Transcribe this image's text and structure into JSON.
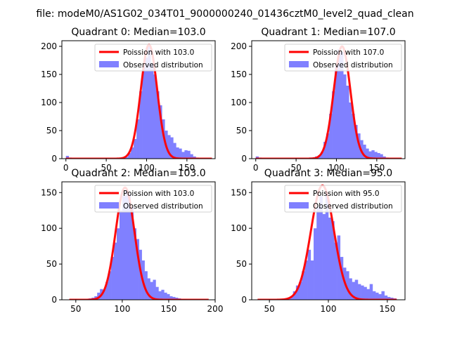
{
  "figure": {
    "suptitle": "file: modeM0/AS1G02_034T01_9000000240_01436cztM0_level2_quad_clean"
  },
  "colors": {
    "histogram": "#8080ff",
    "poisson_curve": "#ff0000",
    "axes": "#000000",
    "background": "#ffffff"
  },
  "chart_data": [
    {
      "type": "bar",
      "title": "Quadrant 0: Median=103.0",
      "xlim": [
        -5,
        185
      ],
      "ylim": [
        0,
        210
      ],
      "xticks": [
        0,
        50,
        100,
        150
      ],
      "yticks": [
        0,
        50,
        100,
        150,
        200
      ],
      "grid": false,
      "legend_position": "top-right",
      "series": [
        {
          "name": "Poission with 103.0",
          "kind": "line",
          "mean": 103.0,
          "peak": 203,
          "sigma": 10.149,
          "x_range": [
            0,
            181
          ]
        },
        {
          "name": "Observed distribution",
          "kind": "histogram",
          "bin_width": 3.5,
          "x": [
            0,
            3.5,
            7,
            10.5,
            14,
            17.5,
            21,
            24.5,
            28,
            31.5,
            35,
            38.5,
            42,
            45.5,
            49,
            52.5,
            56,
            59.5,
            63,
            66.5,
            70,
            73.5,
            77,
            80.5,
            84,
            87.5,
            91,
            94.5,
            98,
            101.5,
            105,
            108.5,
            112,
            115.5,
            119,
            122.5,
            126,
            129.5,
            133,
            136.5,
            140,
            143.5,
            147,
            150.5,
            154,
            157.5,
            161,
            164.5,
            168,
            171.5,
            175,
            178.5
          ],
          "values": [
            5,
            2,
            0,
            0,
            0,
            0,
            0,
            0,
            0,
            0,
            0,
            0,
            0,
            0,
            0,
            0,
            0,
            1,
            0,
            0,
            2,
            3,
            10,
            20,
            35,
            70,
            120,
            165,
            180,
            200,
            170,
            150,
            120,
            95,
            70,
            50,
            42,
            38,
            28,
            20,
            18,
            12,
            15,
            14,
            8,
            4,
            2,
            0,
            0,
            0,
            0,
            0
          ]
        }
      ]
    },
    {
      "type": "bar",
      "title": "Quadrant 1: Median=107.0",
      "xlim": [
        -5,
        185
      ],
      "ylim": [
        0,
        210
      ],
      "xticks": [
        0,
        50,
        100,
        150
      ],
      "yticks": [
        0,
        50,
        100,
        150,
        200
      ],
      "grid": false,
      "legend_position": "top-right",
      "series": [
        {
          "name": "Poission with 107.0",
          "kind": "line",
          "mean": 107.0,
          "peak": 200,
          "sigma": 10.344,
          "x_range": [
            0,
            181
          ]
        },
        {
          "name": "Observed distribution",
          "kind": "histogram",
          "bin_width": 3.5,
          "x": [
            0,
            3.5,
            7,
            10.5,
            14,
            17.5,
            21,
            24.5,
            28,
            31.5,
            35,
            38.5,
            42,
            45.5,
            49,
            52.5,
            56,
            59.5,
            63,
            66.5,
            70,
            73.5,
            77,
            80.5,
            84,
            87.5,
            91,
            94.5,
            98,
            101.5,
            105,
            108.5,
            112,
            115.5,
            119,
            122.5,
            126,
            129.5,
            133,
            136.5,
            140,
            143.5,
            147,
            150.5,
            154,
            157.5,
            161,
            164.5,
            168,
            171.5,
            175,
            178.5
          ],
          "values": [
            4,
            2,
            0,
            0,
            0,
            0,
            0,
            0,
            0,
            0,
            0,
            0,
            0,
            0,
            0,
            0,
            1,
            0,
            0,
            2,
            2,
            4,
            6,
            12,
            30,
            45,
            80,
            120,
            165,
            195,
            190,
            150,
            130,
            100,
            80,
            60,
            45,
            33,
            25,
            18,
            13,
            15,
            12,
            10,
            8,
            4,
            2,
            0,
            0,
            0,
            0,
            0
          ]
        }
      ]
    },
    {
      "type": "bar",
      "title": "Quadrant 2: Median=103.0",
      "xlim": [
        35,
        200
      ],
      "ylim": [
        0,
        165
      ],
      "xticks": [
        50,
        100,
        150,
        200
      ],
      "yticks": [
        0,
        50,
        100,
        150
      ],
      "grid": false,
      "legend_position": "top-right",
      "series": [
        {
          "name": "Poission with 103.0",
          "kind": "line",
          "mean": 103.0,
          "peak": 157,
          "sigma": 10.149,
          "x_range": [
            43,
            193
          ]
        },
        {
          "name": "Observed distribution",
          "kind": "histogram",
          "bin_width": 3.0,
          "x": [
            43,
            46,
            49,
            52,
            55,
            58,
            61,
            64,
            67,
            70,
            73,
            76,
            79,
            82,
            85,
            88,
            91,
            94,
            97,
            100,
            103,
            106,
            109,
            112,
            115,
            118,
            121,
            124,
            127,
            130,
            133,
            136,
            139,
            142,
            145,
            148,
            151,
            154,
            157,
            160,
            163,
            166,
            169,
            172,
            175,
            178,
            181,
            184,
            187,
            190
          ],
          "values": [
            1,
            0,
            0,
            0,
            0,
            0,
            1,
            2,
            3,
            5,
            10,
            15,
            14,
            25,
            40,
            60,
            80,
            100,
            125,
            145,
            152,
            148,
            130,
            100,
            85,
            70,
            55,
            40,
            30,
            25,
            28,
            18,
            12,
            14,
            10,
            8,
            5,
            4,
            3,
            2,
            1,
            1,
            0,
            0,
            0,
            0,
            0,
            0,
            0,
            0
          ]
        }
      ]
    },
    {
      "type": "bar",
      "title": "Quadrant 3: Median=95.0",
      "xlim": [
        35,
        165
      ],
      "ylim": [
        0,
        165
      ],
      "xticks": [
        50,
        100,
        150
      ],
      "yticks": [
        0,
        50,
        100,
        150
      ],
      "grid": false,
      "legend_position": "top-right",
      "series": [
        {
          "name": "Poission with 95.0",
          "kind": "line",
          "mean": 95.0,
          "peak": 160,
          "sigma": 9.747,
          "x_range": [
            40,
            158
          ]
        },
        {
          "name": "Observed distribution",
          "kind": "histogram",
          "bin_width": 2.5,
          "x": [
            40,
            42.5,
            45,
            47.5,
            50,
            52.5,
            55,
            57.5,
            60,
            62.5,
            65,
            67.5,
            70,
            72.5,
            75,
            77.5,
            80,
            82.5,
            85,
            87.5,
            90,
            92.5,
            95,
            97.5,
            100,
            102.5,
            105,
            107.5,
            110,
            112.5,
            115,
            117.5,
            120,
            122.5,
            125,
            127.5,
            130,
            132.5,
            135,
            137.5,
            140,
            142.5,
            145,
            147.5,
            150,
            152.5,
            155
          ],
          "values": [
            1,
            0,
            0,
            0,
            0,
            0,
            0,
            0,
            1,
            2,
            3,
            5,
            12,
            20,
            25,
            40,
            55,
            70,
            55,
            100,
            130,
            145,
            120,
            150,
            115,
            110,
            80,
            90,
            60,
            45,
            40,
            30,
            25,
            28,
            22,
            20,
            18,
            15,
            22,
            12,
            10,
            8,
            12,
            6,
            4,
            3,
            2
          ]
        }
      ]
    }
  ]
}
